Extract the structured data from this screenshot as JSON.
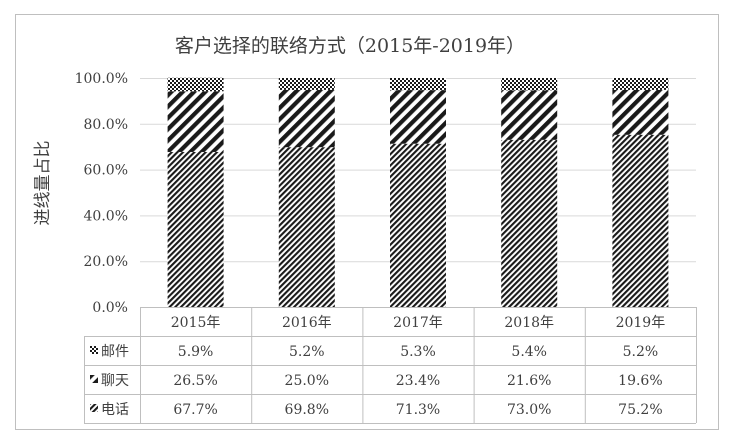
{
  "chart_data": {
    "type": "bar",
    "stacked": true,
    "percent": true,
    "title": "客户选择的联络方式（2015年-2019年）",
    "ylabel": "进线量占比",
    "xlabel": "",
    "ylim": [
      0,
      100
    ],
    "yticks": [
      "0.0%",
      "20.0%",
      "40.0%",
      "60.0%",
      "80.0%",
      "100.0%"
    ],
    "ytick_values": [
      0,
      20,
      40,
      60,
      80,
      100
    ],
    "grid": true,
    "legend": "data-table",
    "categories": [
      "2015年",
      "2016年",
      "2017年",
      "2018年",
      "2019年"
    ],
    "series": [
      {
        "name": "电话",
        "values": [
          67.7,
          69.8,
          71.3,
          73.0,
          75.2
        ],
        "labels": [
          "67.7%",
          "69.8%",
          "71.3%",
          "73.0%",
          "75.2%"
        ],
        "pattern": "dense-diagonal"
      },
      {
        "name": "聊天",
        "values": [
          26.5,
          25.0,
          23.4,
          21.6,
          19.6
        ],
        "labels": [
          "26.5%",
          "25.0%",
          "23.4%",
          "21.6%",
          "19.6%"
        ],
        "pattern": "wide-diagonal"
      },
      {
        "name": "邮件",
        "values": [
          5.9,
          5.2,
          5.3,
          5.4,
          5.2
        ],
        "labels": [
          "5.9%",
          "5.2%",
          "5.3%",
          "5.4%",
          "5.2%"
        ],
        "pattern": "checker"
      }
    ],
    "table_row_order": [
      "邮件",
      "聊天",
      "电话"
    ],
    "colors": {
      "ink": "#1a1a1a",
      "grid": "#d9d9d9",
      "border": "#bfbfbf",
      "text": "#404040"
    }
  }
}
